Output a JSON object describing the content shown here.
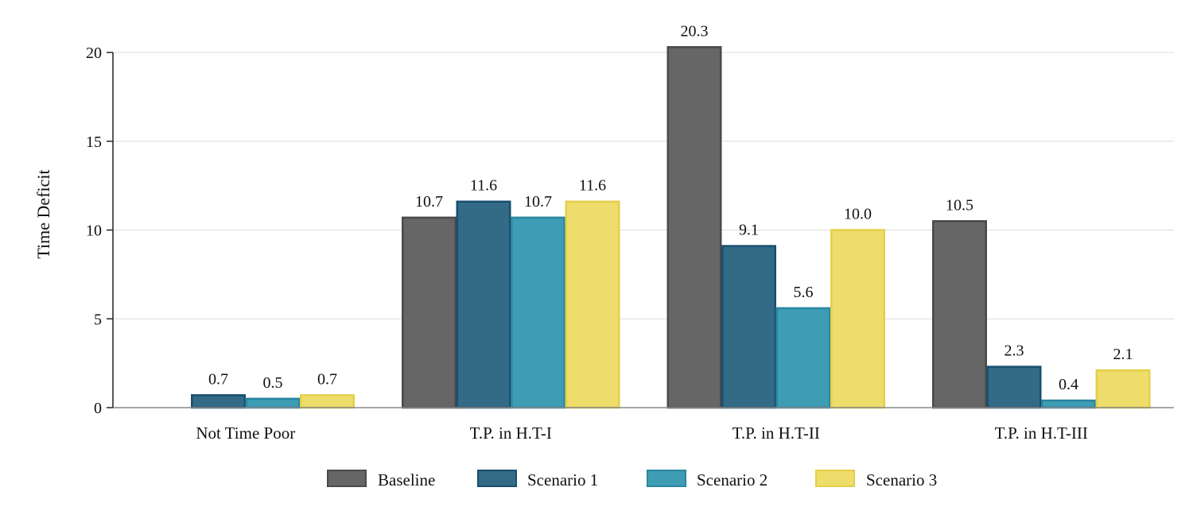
{
  "chart_data": {
    "type": "bar",
    "title": "",
    "xlabel": "",
    "ylabel": "Time Deficit",
    "ylim": [
      0,
      20
    ],
    "yticks": [
      0,
      5,
      10,
      15,
      20
    ],
    "grid": true,
    "legend_position": "bottom",
    "categories": [
      "Not Time Poor",
      "T.P. in H.T-I",
      "T.P. in H.T-II",
      "T.P. in H.T-III"
    ],
    "series": [
      {
        "name": "Baseline",
        "color": "#666666",
        "stroke": "#4a4a4a",
        "values": [
          0,
          10.7,
          20.3,
          10.5
        ],
        "labels": [
          null,
          "10.7",
          "20.3",
          "10.5"
        ]
      },
      {
        "name": "Scenario 1",
        "color": "#336b87",
        "stroke": "#1a4e6e",
        "values": [
          0.7,
          11.6,
          9.1,
          2.3
        ],
        "labels": [
          "0.7",
          "11.6",
          "9.1",
          "2.3"
        ]
      },
      {
        "name": "Scenario 2",
        "color": "#3e9cb4",
        "stroke": "#2a86a0",
        "values": [
          0.5,
          10.7,
          5.6,
          0.4
        ],
        "labels": [
          "0.5",
          "10.7",
          "5.6",
          "0.4"
        ]
      },
      {
        "name": "Scenario 3",
        "color": "#eedd6a",
        "stroke": "#e3cf4a",
        "values": [
          0.7,
          11.6,
          10.0,
          2.1
        ],
        "labels": [
          "0.7",
          "11.6",
          "10.0",
          "2.1"
        ]
      }
    ]
  }
}
